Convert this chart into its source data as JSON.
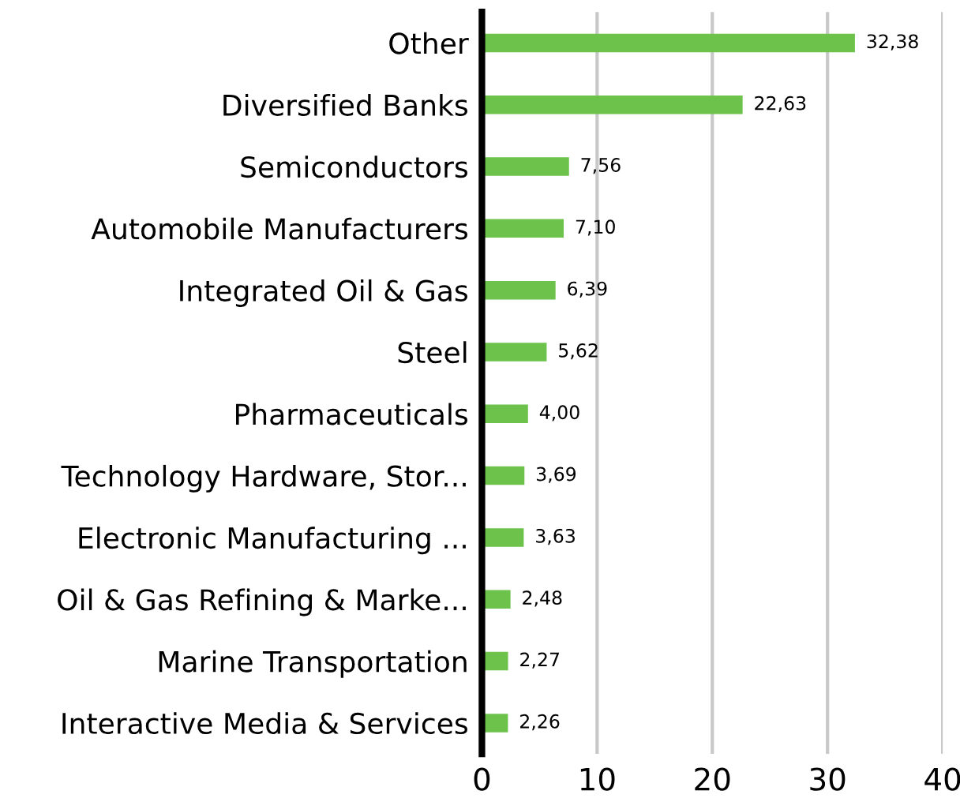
{
  "chart_data": {
    "type": "bar",
    "orientation": "horizontal",
    "categories": [
      "Other",
      "Diversified Banks",
      "Semiconductors",
      "Automobile Manufacturers",
      "Integrated Oil & Gas",
      "Steel",
      "Pharmaceuticals",
      "Technology Hardware, Stor...",
      "Electronic Manufacturing ...",
      "Oil & Gas Refining & Marke...",
      "Marine Transportation",
      "Interactive Media & Services"
    ],
    "values": [
      32.38,
      22.63,
      7.56,
      7.1,
      6.39,
      5.62,
      4.0,
      3.69,
      3.63,
      2.48,
      2.27,
      2.26
    ],
    "value_labels": [
      "32,38",
      "22,63",
      "7,56",
      "7,10",
      "6,39",
      "5,62",
      "4,00",
      "3,69",
      "3,63",
      "2,48",
      "2,27",
      "2,26"
    ],
    "color": "#6cc24a",
    "xlim": [
      0,
      40
    ],
    "xticks": [
      0,
      10,
      20,
      30,
      40
    ],
    "grid": "x"
  }
}
